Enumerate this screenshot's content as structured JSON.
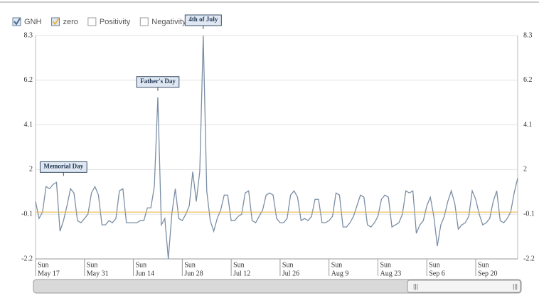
{
  "chart_data": {
    "type": "line",
    "series": [
      {
        "name": "GNH",
        "color": "#7b8ea5",
        "checked": true,
        "values": [
          0.5,
          -0.3,
          0.0,
          1.2,
          1.1,
          1.3,
          1.4,
          -0.9,
          -0.4,
          0.3,
          1.1,
          0.9,
          -0.4,
          -0.5,
          -0.3,
          -0.1,
          0.9,
          1.2,
          0.8,
          -0.6,
          -0.6,
          -0.4,
          -0.5,
          -0.3,
          1.0,
          1.1,
          -0.5,
          -0.5,
          -0.5,
          -0.5,
          -0.4,
          -0.4,
          0.2,
          0.2,
          1.2,
          5.4,
          -0.6,
          -0.3,
          -2.2,
          -0.1,
          1.1,
          -0.3,
          -0.4,
          -0.1,
          0.3,
          1.9,
          0.5,
          1.9,
          8.3,
          1.0,
          -0.4,
          -0.9,
          -0.3,
          0.1,
          0.8,
          0.8,
          -0.4,
          -0.4,
          -0.2,
          -0.1,
          0.9,
          1.0,
          -0.4,
          -0.5,
          -0.2,
          0.1,
          0.8,
          0.9,
          0.8,
          -0.3,
          -0.5,
          -0.5,
          -0.3,
          0.8,
          1.0,
          0.7,
          -0.4,
          -0.3,
          -0.4,
          -0.2,
          0.6,
          0.6,
          -0.5,
          -0.5,
          -0.4,
          -0.2,
          0.9,
          0.8,
          -0.7,
          -0.7,
          -0.5,
          -0.2,
          0.3,
          0.8,
          0.7,
          -0.6,
          -0.7,
          -0.5,
          -0.2,
          0.6,
          0.8,
          0.7,
          -0.7,
          -0.6,
          -0.5,
          -0.1,
          1.0,
          0.9,
          1.0,
          -1.0,
          -0.6,
          -0.4,
          0.3,
          0.7,
          -0.2,
          -1.6,
          -0.6,
          -0.2,
          0.5,
          1.0,
          0.4,
          -0.8,
          -0.6,
          -0.5,
          -0.2,
          1.0,
          0.6,
          -0.1,
          -0.6,
          -0.5,
          -0.3,
          0.5,
          1.0,
          -0.4,
          -0.5,
          -0.3,
          0.0,
          0.9,
          1.6
        ]
      },
      {
        "name": "zero",
        "color": "#e8b84a",
        "checked": true,
        "values": [
          0
        ]
      },
      {
        "name": "Positivity",
        "checked": false
      },
      {
        "name": "Negativity",
        "checked": false
      }
    ],
    "xlim": [
      0,
      138
    ],
    "xticks": [
      {
        "value": 0,
        "weekday": "Sun",
        "label": "May 17"
      },
      {
        "value": 14,
        "weekday": "Sun",
        "label": "May 31"
      },
      {
        "value": 28,
        "weekday": "Sun",
        "label": "Jun 14"
      },
      {
        "value": 42,
        "weekday": "Sun",
        "label": "Jun 28"
      },
      {
        "value": 56,
        "weekday": "Sun",
        "label": "Jul 12"
      },
      {
        "value": 70,
        "weekday": "Sun",
        "label": "Jul 26"
      },
      {
        "value": 84,
        "weekday": "Sun",
        "label": "Aug 9"
      },
      {
        "value": 98,
        "weekday": "Sun",
        "label": "Aug 23"
      },
      {
        "value": 112,
        "weekday": "Sun",
        "label": "Sep 6"
      },
      {
        "value": 126,
        "weekday": "Sun",
        "label": "Sep 20"
      }
    ],
    "ylim": [
      -2.2,
      8.3
    ],
    "yticks": [
      -2.2,
      -0.1,
      2,
      4.1,
      6.2,
      8.3
    ],
    "grid": true,
    "annotations": [
      {
        "text": "Memorial Day",
        "x": 8
      },
      {
        "text": "Father's Day",
        "x": 35
      },
      {
        "text": "4th of July",
        "x": 48
      }
    ]
  }
}
